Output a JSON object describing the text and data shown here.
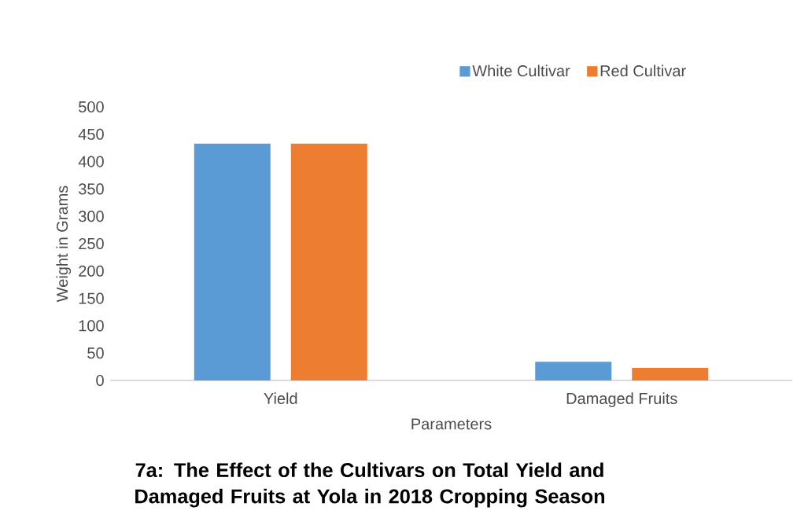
{
  "chart_data": {
    "type": "bar",
    "title": "7a: The Effect of the Cultivars on Total Yield and Damaged Fruits at Yola in 2018 Cropping Season",
    "xlabel": "Parameters",
    "ylabel": "Weight in Grams",
    "categories": [
      "Yield",
      "Damaged Fruits"
    ],
    "series": [
      {
        "name": "White Cultivar",
        "color": "#5b9bd5",
        "values": [
          433,
          34
        ]
      },
      {
        "name": "Red Cultivar",
        "color": "#ed7d31",
        "values": [
          433,
          23
        ]
      }
    ],
    "ylim": [
      0,
      500
    ],
    "yticks": [
      0,
      50,
      100,
      150,
      200,
      250,
      300,
      350,
      400,
      450,
      500
    ],
    "legend": "top"
  }
}
